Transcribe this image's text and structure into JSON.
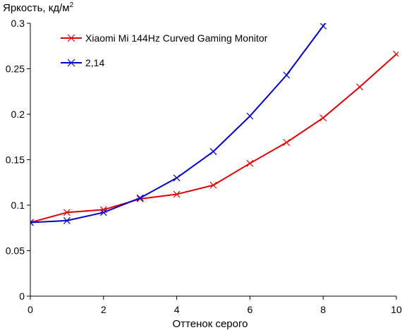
{
  "chart_data": {
    "type": "line",
    "ylabel": "Яркость, кд/м",
    "ylabel_superscript": "2",
    "xlabel": "Оттенок серого",
    "xlim": [
      0,
      10
    ],
    "ylim": [
      0,
      0.3
    ],
    "grid": false,
    "legend_position": "top-left",
    "x_ticks": [
      "0",
      "2",
      "4",
      "6",
      "8",
      "10"
    ],
    "y_ticks": [
      "0",
      "0.05",
      "0.1",
      "0.15",
      "0.2",
      "0.25",
      "0.3"
    ],
    "series": [
      {
        "name": "Xiaomi Mi 144Hz Curved Gaming Monitor",
        "color": "#e00000",
        "marker": "x",
        "x": [
          0,
          1,
          2,
          3,
          4,
          5,
          6,
          7,
          8,
          9,
          10
        ],
        "y": [
          0.081,
          0.092,
          0.095,
          0.107,
          0.112,
          0.122,
          0.146,
          0.169,
          0.196,
          0.23,
          0.266
        ]
      },
      {
        "name": "2,14",
        "color": "#0000c8",
        "marker": "x",
        "x": [
          0,
          1,
          2,
          3,
          4,
          5,
          6,
          7,
          8,
          8.15
        ],
        "y": [
          0.081,
          0.083,
          0.092,
          0.108,
          0.13,
          0.159,
          0.198,
          0.243,
          0.297,
          0.305
        ]
      }
    ]
  }
}
